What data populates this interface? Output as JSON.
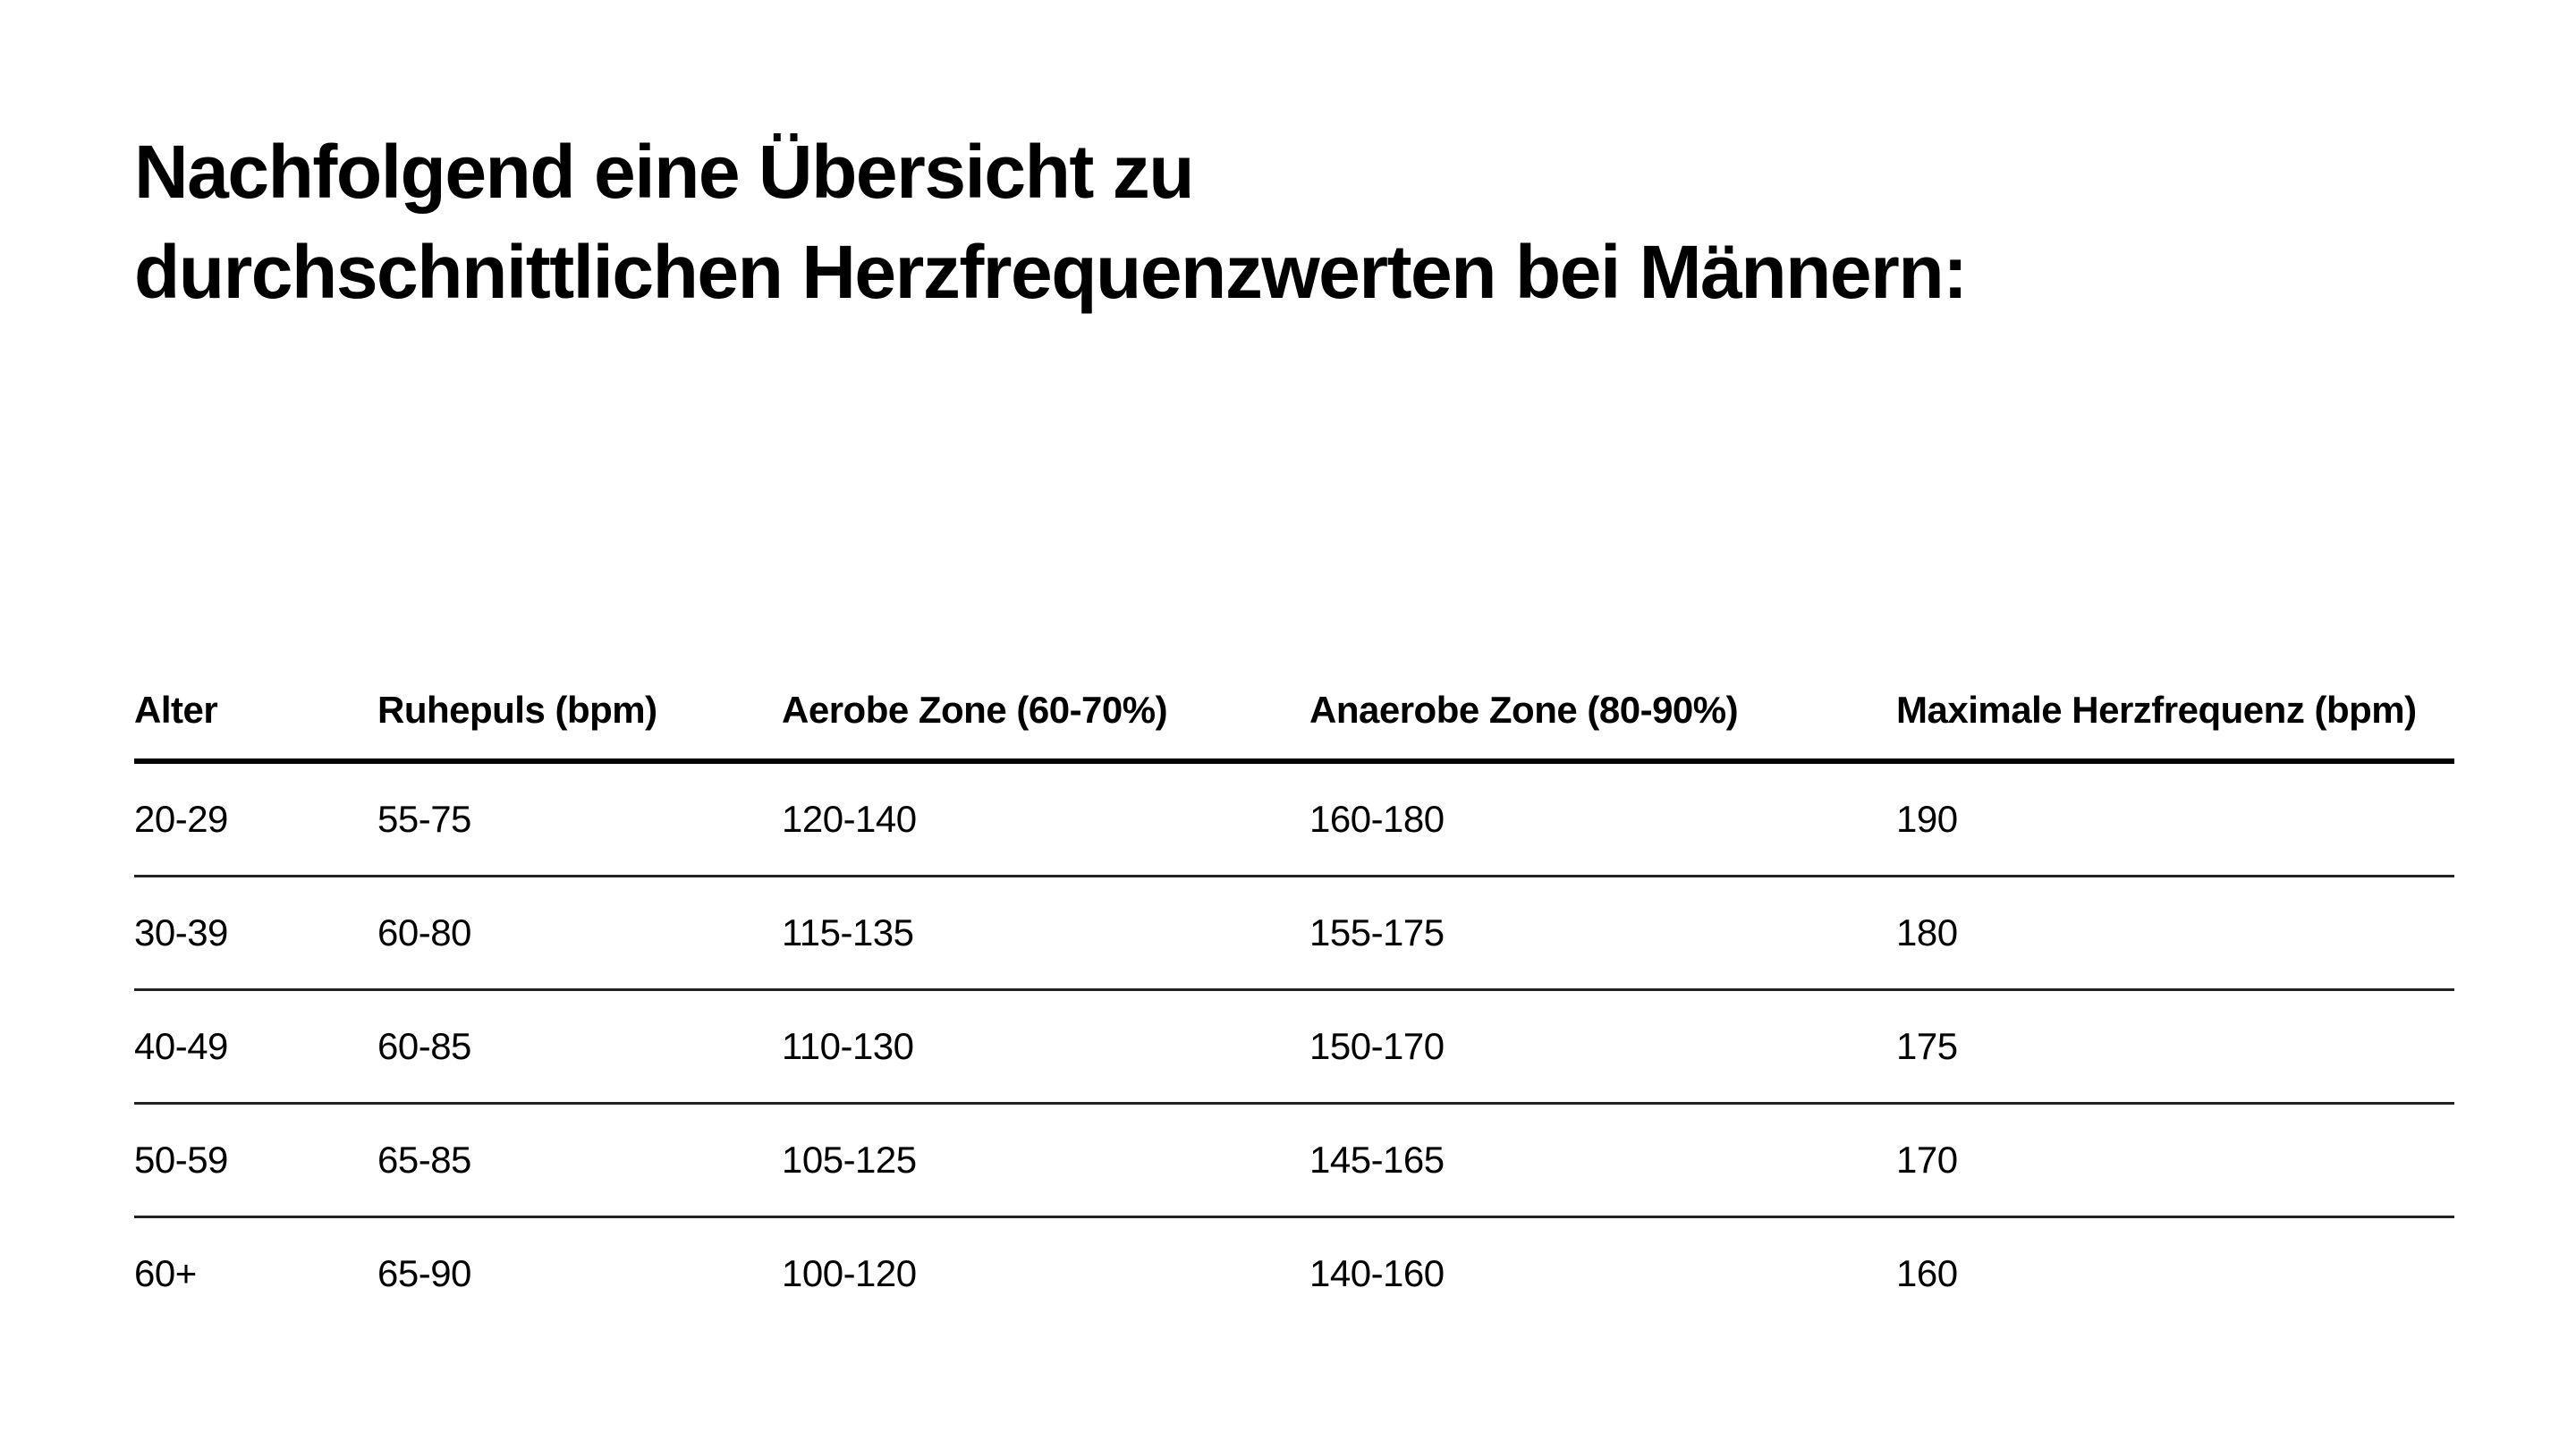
{
  "title": {
    "line1": "Nachfolgend eine Übersicht zu",
    "line2": "durchschnittlichen Herzfrequenzwerten bei Männern:"
  },
  "table": {
    "headers": [
      "Alter",
      "Ruhepuls (bpm)",
      "Aerobe Zone (60-70%)",
      "Anaerobe Zone (80-90%)",
      "Maximale Herzfrequenz (bpm)"
    ],
    "rows": [
      [
        "20-29",
        "55-75",
        "120-140",
        "160-180",
        "190"
      ],
      [
        "30-39",
        "60-80",
        "115-135",
        "155-175",
        "180"
      ],
      [
        "40-49",
        "60-85",
        "110-130",
        "150-170",
        "175"
      ],
      [
        "50-59",
        "65-85",
        "105-125",
        "145-165",
        "170"
      ],
      [
        "60+",
        "65-90",
        "100-120",
        "140-160",
        "160"
      ]
    ]
  }
}
